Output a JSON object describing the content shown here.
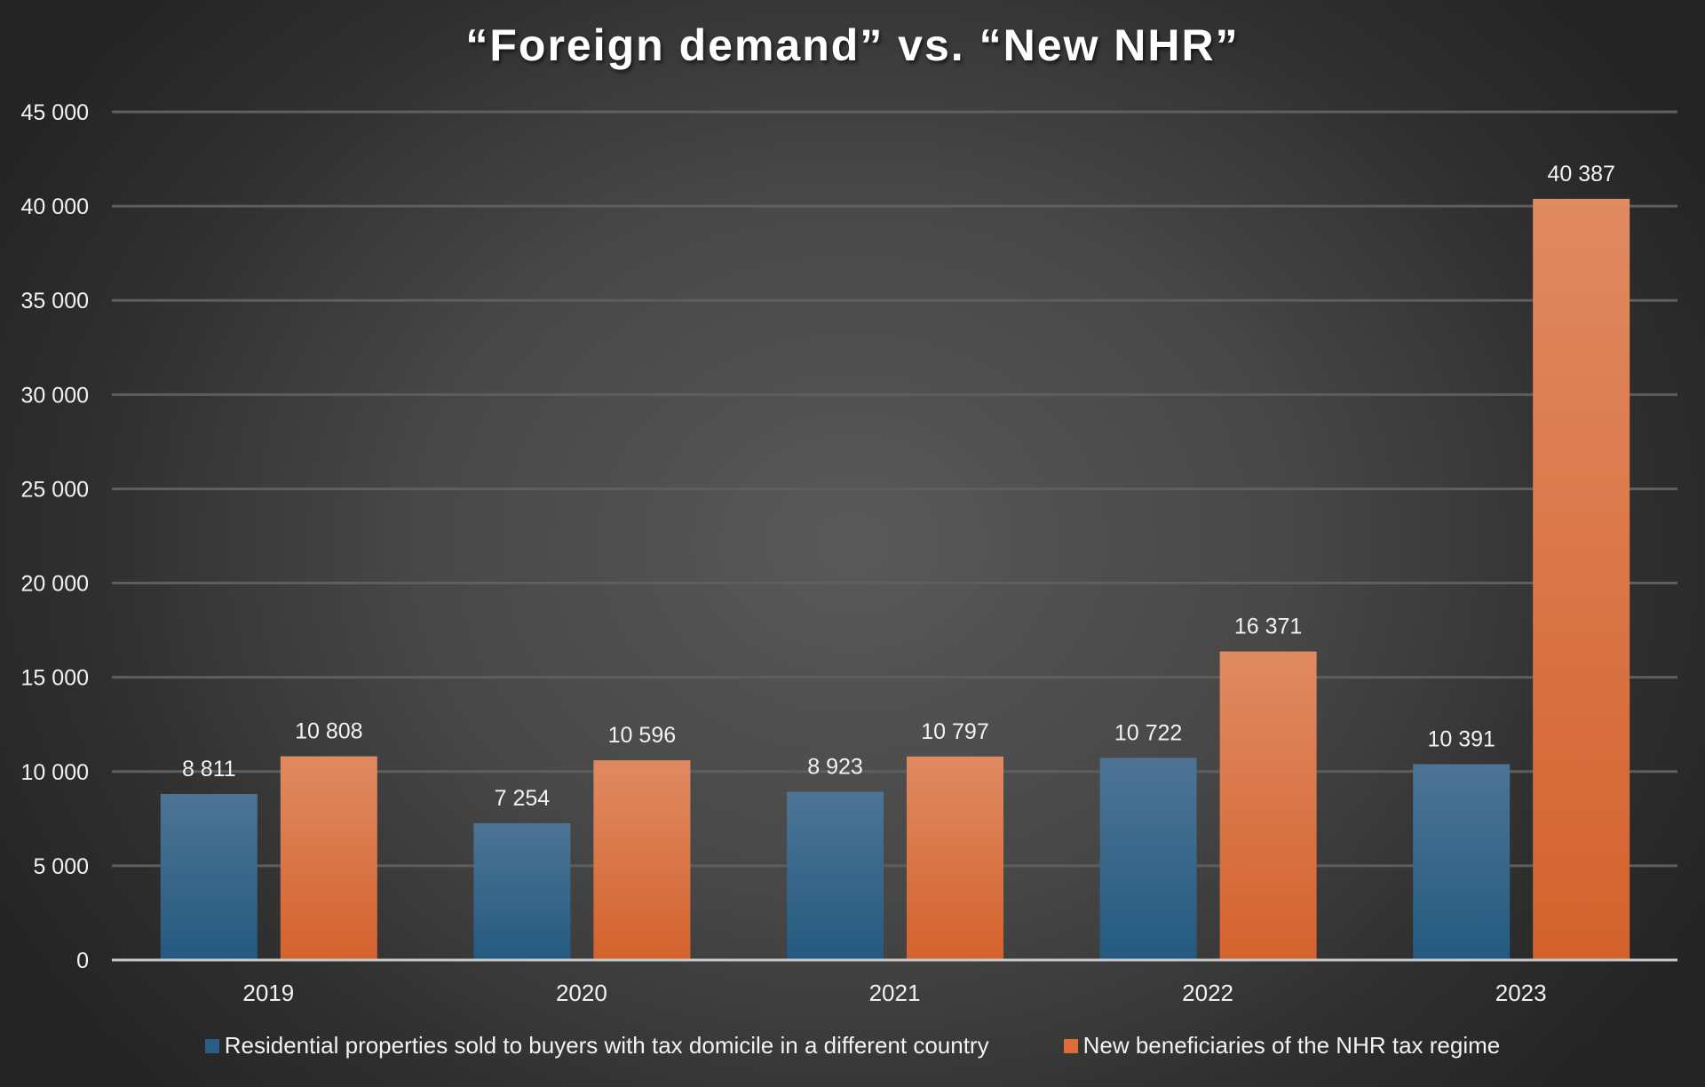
{
  "chart_data": {
    "type": "bar",
    "title": "“Foreign demand” vs. “New NHR”",
    "categories": [
      "2019",
      "2020",
      "2021",
      "2022",
      "2023"
    ],
    "series": [
      {
        "name": "Residential properties sold to buyers with tax domicile in a different country",
        "values": [
          8811,
          7254,
          8923,
          10722,
          10391
        ],
        "labels": [
          "8 811",
          "7 254",
          "8 923",
          "10 722",
          "10 391"
        ],
        "color": "#2a5e86"
      },
      {
        "name": "New beneficiaries of the NHR tax regime",
        "values": [
          10808,
          10596,
          10797,
          16371,
          40387
        ],
        "labels": [
          "10 808",
          "10 596",
          "10 797",
          "16 371",
          "40 387"
        ],
        "color": "#dd6c35"
      }
    ],
    "ylim": [
      0,
      45000
    ],
    "yticks": [
      0,
      5000,
      10000,
      15000,
      20000,
      25000,
      30000,
      35000,
      40000,
      45000
    ],
    "ytick_labels": [
      "0",
      "5 000",
      "10 000",
      "15 000",
      "20 000",
      "25 000",
      "30 000",
      "35 000",
      "40 000",
      "45 000"
    ],
    "grid": true,
    "legend": "bottom",
    "xlabel": "",
    "ylabel": ""
  }
}
